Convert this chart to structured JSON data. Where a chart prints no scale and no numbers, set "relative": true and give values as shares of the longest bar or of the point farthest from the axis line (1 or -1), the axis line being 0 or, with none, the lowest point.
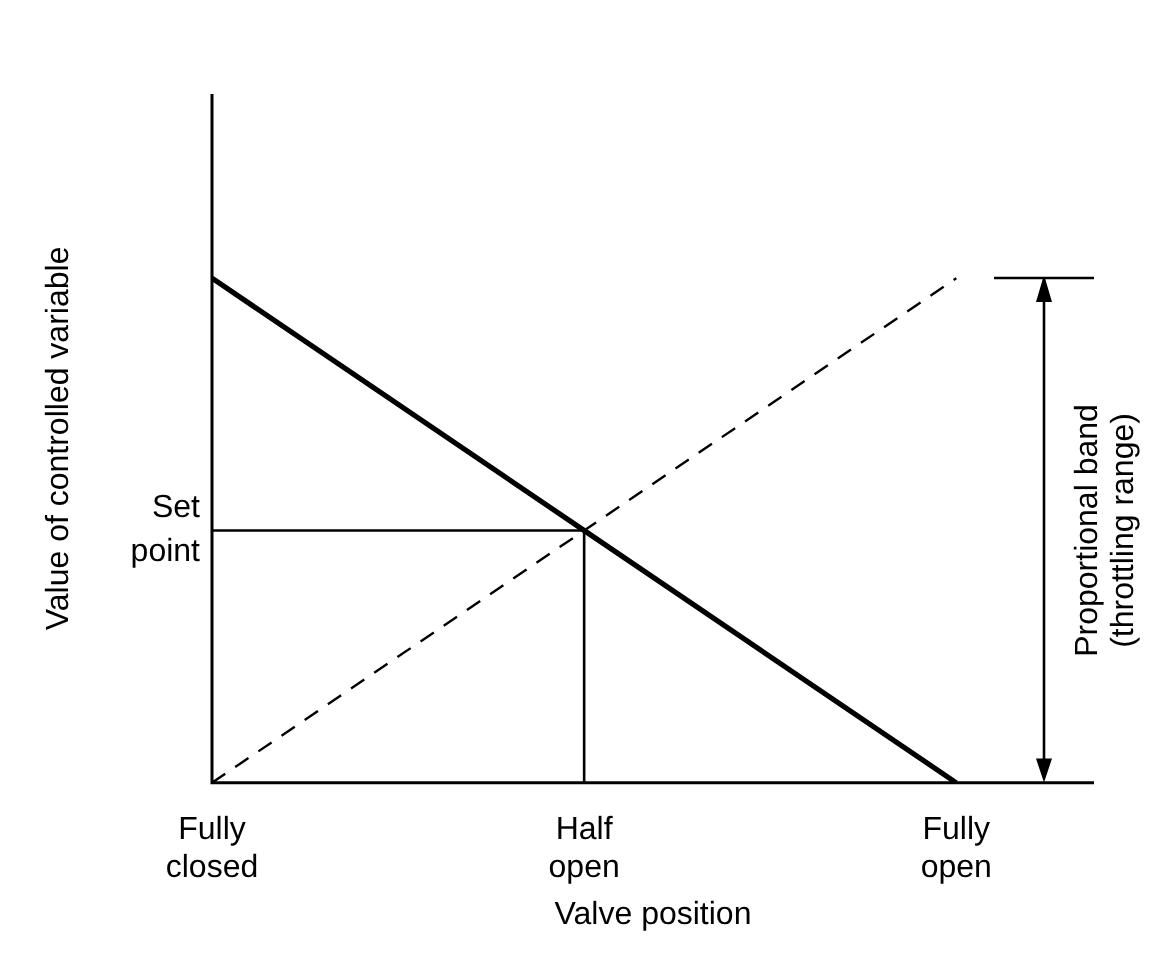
{
  "chart_data": {
    "type": "line",
    "relative": true,
    "xlabel": "Valve position",
    "ylabel": "Value of controlled variable",
    "categories": [
      "Fully closed",
      "Half open",
      "Fully open"
    ],
    "series": [
      {
        "color": "#000000",
        "values": [
          1,
          0.5,
          0
        ],
        "line_style": "solid"
      },
      {
        "color": "#000000",
        "values": [
          0,
          0.5,
          1
        ],
        "line_style": "dashed"
      }
    ],
    "ref_lines": [
      {
        "axis": "y",
        "value": 0.5,
        "label": "Set point",
        "color": "#000000"
      },
      {
        "axis": "x",
        "value": "Half open",
        "color": "#000000"
      }
    ],
    "annotations": [
      "Proportional band (throttling range)"
    ],
    "marker": "none",
    "grid": false,
    "legend": false
  }
}
